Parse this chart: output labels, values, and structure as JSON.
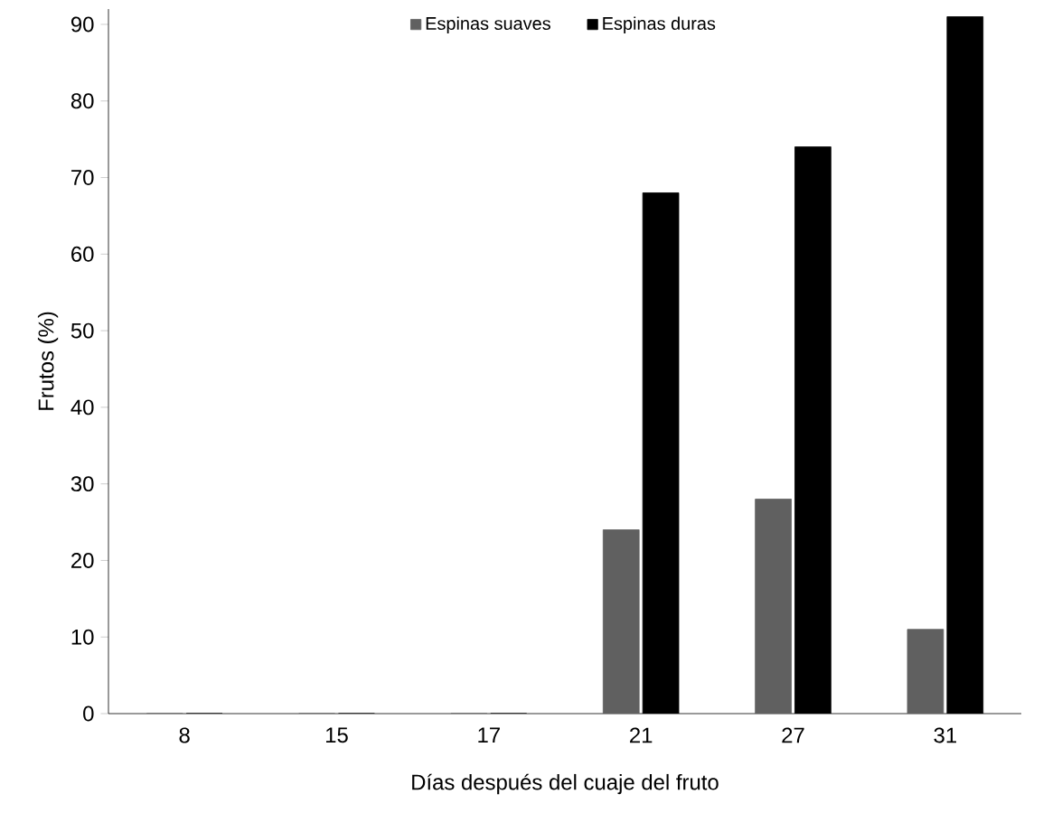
{
  "chart_data": {
    "type": "bar",
    "xlabel": "Días después del cuaje del fruto",
    "ylabel": "Frutos  (%)",
    "categories": [
      "8",
      "15",
      "17",
      "21",
      "27",
      "31"
    ],
    "series": [
      {
        "name": "Espinas  suaves",
        "color": "#606060",
        "values": [
          0,
          0,
          0,
          24,
          28,
          11
        ]
      },
      {
        "name": "Espinas  duras",
        "color": "#000000",
        "values": [
          0,
          0,
          0,
          68,
          74,
          91
        ]
      }
    ],
    "ylim": [
      0,
      92
    ],
    "yticks": [
      0,
      10,
      20,
      30,
      40,
      50,
      60,
      70,
      80,
      90
    ],
    "grid": false,
    "legend": "top"
  }
}
